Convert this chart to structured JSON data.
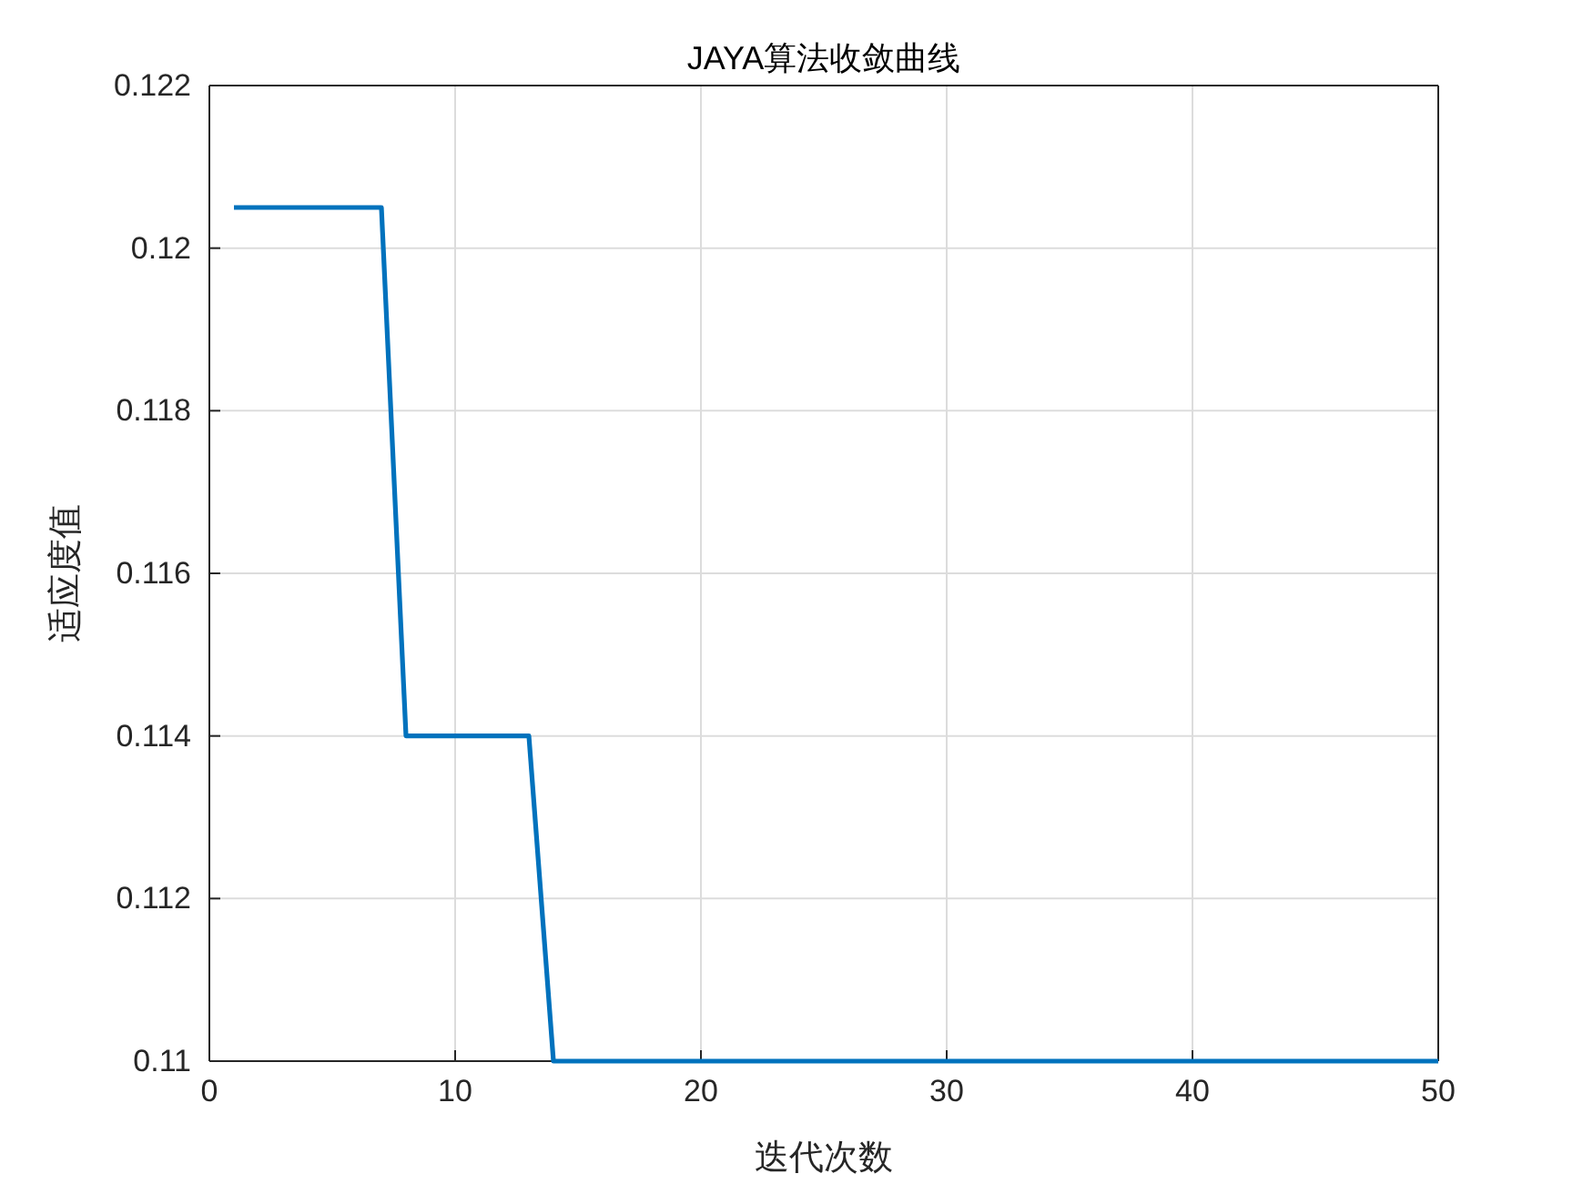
{
  "chart_data": {
    "type": "line",
    "title": "JAYA算法收敛曲线",
    "xlabel": "迭代次数",
    "ylabel": "适应度值",
    "x": [
      1,
      7,
      8,
      13,
      14,
      50
    ],
    "series": [
      {
        "color": "#0072bd",
        "values": [
          0.1205,
          0.1205,
          0.114,
          0.114,
          0.11,
          0.11
        ]
      }
    ],
    "xlim": [
      0,
      50
    ],
    "xticks": [
      0,
      10,
      20,
      30,
      40,
      50
    ],
    "ylim": [
      0.11,
      0.122
    ],
    "yticks": [
      0.11,
      0.112,
      0.114,
      0.116,
      0.118,
      0.12,
      0.122
    ],
    "grid": true,
    "marker": "none",
    "line_style": "solid"
  }
}
